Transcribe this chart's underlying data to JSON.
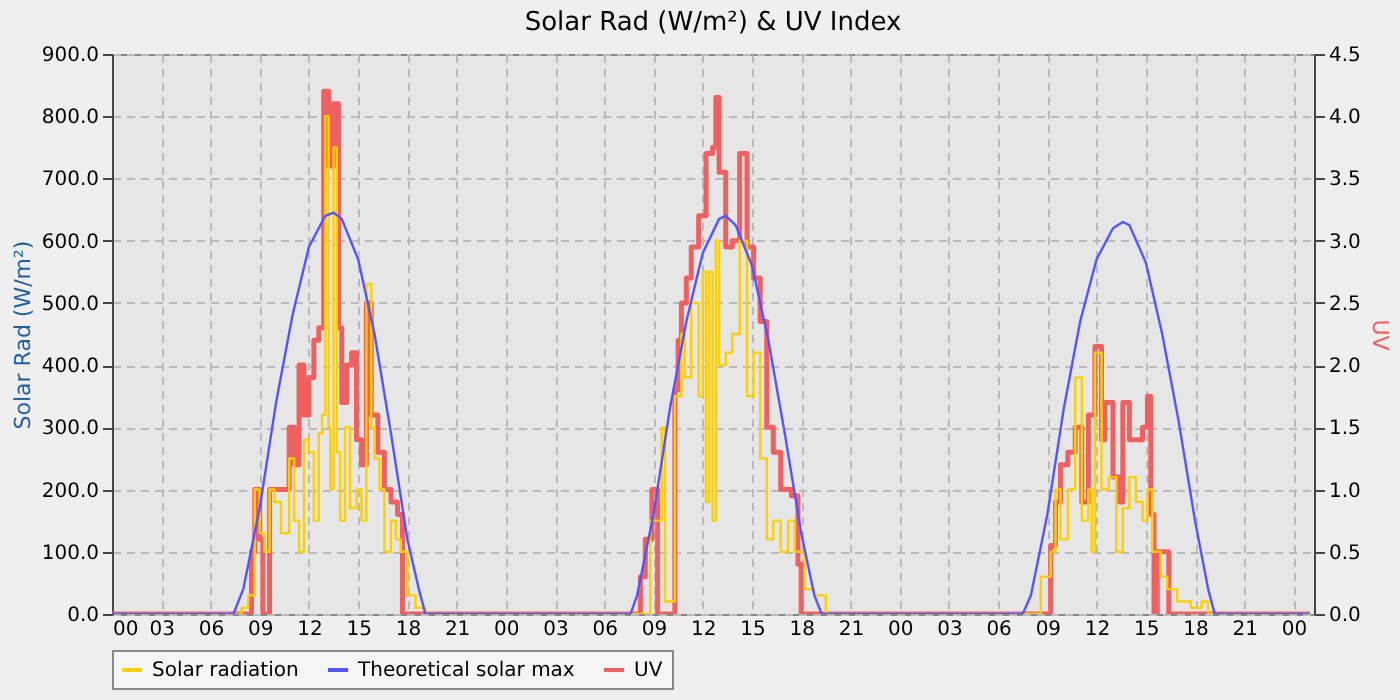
{
  "chart_data": {
    "type": "step",
    "title": "Solar Rad (W/m²) &  UV Index",
    "ylabel": "Solar Rad (W/m²)",
    "y2label": "UV",
    "xlim": [
      0,
      73.25
    ],
    "xticks": [
      {
        "value": 0,
        "label": "00"
      },
      {
        "value": 3,
        "label": "03"
      },
      {
        "value": 6,
        "label": "06"
      },
      {
        "value": 9,
        "label": "09"
      },
      {
        "value": 12,
        "label": "12"
      },
      {
        "value": 15,
        "label": "15"
      },
      {
        "value": 18,
        "label": "18"
      },
      {
        "value": 21,
        "label": "21"
      },
      {
        "value": 24,
        "label": "00"
      },
      {
        "value": 27,
        "label": "03"
      },
      {
        "value": 30,
        "label": "06"
      },
      {
        "value": 33,
        "label": "09"
      },
      {
        "value": 36,
        "label": "12"
      },
      {
        "value": 39,
        "label": "15"
      },
      {
        "value": 42,
        "label": "18"
      },
      {
        "value": 45,
        "label": "21"
      },
      {
        "value": 48,
        "label": "00"
      },
      {
        "value": 51,
        "label": "03"
      },
      {
        "value": 54,
        "label": "06"
      },
      {
        "value": 57,
        "label": "09"
      },
      {
        "value": 60,
        "label": "12"
      },
      {
        "value": 63,
        "label": "15"
      },
      {
        "value": 66,
        "label": "18"
      },
      {
        "value": 69,
        "label": "21"
      },
      {
        "value": 72,
        "label": "00"
      }
    ],
    "ylim": [
      0,
      900
    ],
    "yticks": [
      {
        "value": 0,
        "label": "0.0"
      },
      {
        "value": 100,
        "label": "100.0"
      },
      {
        "value": 200,
        "label": "200.0"
      },
      {
        "value": 300,
        "label": "300.0"
      },
      {
        "value": 400,
        "label": "400.0"
      },
      {
        "value": 500,
        "label": "500.0"
      },
      {
        "value": 600,
        "label": "600.0"
      },
      {
        "value": 700,
        "label": "700.0"
      },
      {
        "value": 800,
        "label": "800.0"
      },
      {
        "value": 900,
        "label": "900.0"
      }
    ],
    "y2lim": [
      0,
      4.5
    ],
    "y2ticks": [
      {
        "value": 0,
        "label": "0.0"
      },
      {
        "value": 0.5,
        "label": "0.5"
      },
      {
        "value": 1,
        "label": "1.0"
      },
      {
        "value": 1.5,
        "label": "1.5"
      },
      {
        "value": 2,
        "label": "2.0"
      },
      {
        "value": 2.5,
        "label": "2.5"
      },
      {
        "value": 3,
        "label": "3.0"
      },
      {
        "value": 3.5,
        "label": "3.5"
      },
      {
        "value": 4,
        "label": "4.0"
      },
      {
        "value": 4.5,
        "label": "4.5"
      }
    ],
    "grid": true,
    "legend": "bottom",
    "series": [
      {
        "name": "Solar radiation",
        "color": "#ffd000",
        "x": [
          0,
          7.4,
          7.9,
          8.3,
          8.7,
          9.0,
          9.3,
          9.6,
          9.9,
          10.3,
          10.8,
          11.1,
          11.4,
          11.7,
          12.0,
          12.3,
          12.6,
          12.8,
          13.0,
          13.2,
          13.3,
          13.5,
          13.7,
          13.9,
          14.2,
          14.5,
          14.9,
          15.2,
          15.5,
          15.8,
          16.0,
          16.3,
          16.6,
          17.0,
          17.3,
          17.6,
          18.0,
          18.5,
          19.1,
          31.6,
          32.8,
          33.5,
          33.7,
          34.1,
          34.3,
          34.7,
          34.9,
          35.3,
          35.75,
          36.0,
          36.2,
          36.4,
          36.6,
          36.8,
          37.0,
          37.4,
          37.8,
          38.25,
          38.7,
          39.1,
          39.5,
          39.9,
          40.3,
          40.75,
          41.2,
          41.6,
          42.2,
          42.8,
          43.5,
          55.5,
          56.6,
          57.2,
          57.5,
          57.8,
          58.25,
          58.7,
          59.1,
          59.5,
          59.7,
          59.9,
          60.3,
          60.75,
          61.2,
          61.6,
          62.0,
          62.4,
          62.8,
          63.1,
          63.4,
          63.9,
          64.3,
          64.9,
          65.75,
          66.4,
          66.8,
          73
        ],
        "values": [
          0,
          0,
          10,
          30,
          200,
          130,
          100,
          200,
          180,
          130,
          250,
          150,
          100,
          280,
          260,
          150,
          290,
          320,
          800,
          300,
          200,
          750,
          260,
          150,
          300,
          170,
          200,
          150,
          530,
          300,
          250,
          200,
          100,
          150,
          120,
          100,
          30,
          10,
          0,
          0,
          150,
          300,
          20,
          20,
          350,
          450,
          380,
          500,
          350,
          550,
          180,
          550,
          150,
          600,
          400,
          420,
          450,
          600,
          350,
          420,
          250,
          120,
          150,
          100,
          150,
          100,
          40,
          30,
          0,
          0,
          60,
          100,
          200,
          120,
          200,
          380,
          150,
          200,
          100,
          420,
          200,
          220,
          100,
          170,
          220,
          180,
          150,
          200,
          100,
          60,
          40,
          20,
          10,
          20,
          0,
          0
        ]
      },
      {
        "name": "Theoretical solar max",
        "color": "#5555ff",
        "type": "line",
        "x": [
          0,
          7.4,
          8,
          9,
          10,
          11,
          12,
          13,
          13.5,
          14,
          15,
          16,
          17,
          18,
          18.7,
          19.1,
          31.6,
          32,
          33,
          34,
          35,
          36,
          37,
          37.4,
          38,
          39,
          40,
          41,
          42,
          42.8,
          43.25,
          55.5,
          56,
          57,
          58,
          59,
          60,
          61,
          61.6,
          62,
          63,
          64,
          65,
          66,
          66.8,
          67.2,
          73
        ],
        "values": [
          0,
          0,
          40,
          170,
          340,
          480,
          590,
          640,
          645,
          635,
          570,
          450,
          290,
          120,
          40,
          0,
          0,
          30,
          160,
          330,
          470,
          580,
          635,
          640,
          625,
          560,
          440,
          290,
          130,
          30,
          0,
          0,
          30,
          160,
          330,
          470,
          570,
          620,
          630,
          625,
          565,
          450,
          310,
          150,
          40,
          0,
          0
        ]
      },
      {
        "name": "UV",
        "color": "#f06060",
        "axis": "y2",
        "x": [
          0,
          8.3,
          8.5,
          8.7,
          9.0,
          9.2,
          9.6,
          10.0,
          10.5,
          10.8,
          11.1,
          11.4,
          11.7,
          12.0,
          12.3,
          12.6,
          12.9,
          13.2,
          13.5,
          13.8,
          14.0,
          14.3,
          14.6,
          14.9,
          15.2,
          15.5,
          15.8,
          16.2,
          16.6,
          17.0,
          17.4,
          17.7,
          31.8,
          32.2,
          32.5,
          32.9,
          33.25,
          34.3,
          34.5,
          34.7,
          35.0,
          35.3,
          35.75,
          36.2,
          36.6,
          36.8,
          37.0,
          37.4,
          37.8,
          38.25,
          38.7,
          39.1,
          39.5,
          39.9,
          40.3,
          40.75,
          41.4,
          41.8,
          42.0,
          56.9,
          57.2,
          57.5,
          57.8,
          58.25,
          58.7,
          59.1,
          59.5,
          59.9,
          60.3,
          60.5,
          61.0,
          61.4,
          61.6,
          62.0,
          62.4,
          62.8,
          63.1,
          63.3,
          63.5,
          63.7,
          64.2,
          64.4,
          73
        ],
        "values": [
          0,
          0,
          0.5,
          1.0,
          0.6,
          0,
          1.0,
          1.0,
          1.0,
          1.5,
          1.2,
          2.0,
          1.6,
          1.9,
          2.2,
          2.3,
          4.2,
          3.6,
          4.1,
          2.3,
          1.7,
          2.0,
          2.1,
          1.4,
          1.2,
          2.5,
          1.6,
          1.3,
          1.0,
          0.9,
          0.8,
          0,
          0,
          0.3,
          0.6,
          1.0,
          0,
          1.8,
          2.2,
          2.5,
          2.7,
          2.95,
          3.2,
          3.7,
          3.75,
          4.15,
          3.55,
          2.95,
          3.0,
          3.7,
          2.95,
          2.7,
          2.35,
          1.5,
          1.3,
          1.0,
          0.95,
          0.4,
          0,
          0,
          0.55,
          0.9,
          1.2,
          1.3,
          1.5,
          0.9,
          1.6,
          2.15,
          1.4,
          1.7,
          1.1,
          0.9,
          1.7,
          1.4,
          1.4,
          1.5,
          1.75,
          0.8,
          0,
          0.5,
          0.5,
          0,
          0
        ]
      }
    ]
  }
}
